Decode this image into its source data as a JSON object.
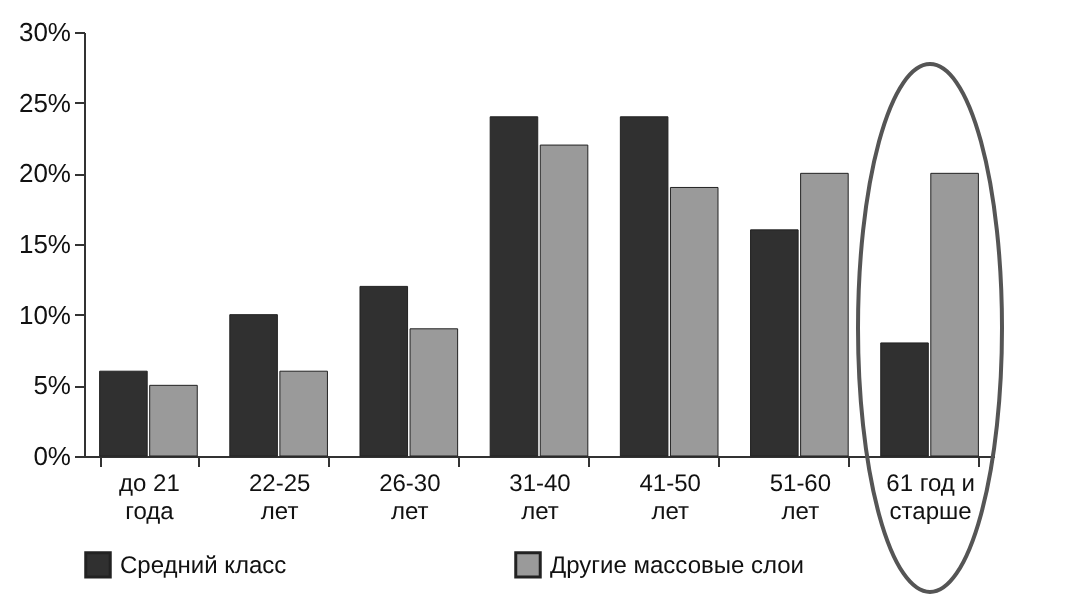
{
  "chart_data": {
    "type": "bar",
    "categories": [
      "до 21 года",
      "22-25 лет",
      "26-30 лет",
      "31-40 лет",
      "41-50 лет",
      "51-60 лет",
      "61 год и старше"
    ],
    "series": [
      {
        "name": "Средний класс",
        "color": "#303030",
        "values": [
          6,
          10,
          12,
          24,
          24,
          16,
          8
        ]
      },
      {
        "name": "Другие массовые слои",
        "color": "#9a9a9a",
        "values": [
          5,
          6,
          9,
          22,
          19,
          20,
          20
        ]
      }
    ],
    "ylim": [
      0,
      30
    ],
    "yticks": [
      {
        "value": 0,
        "label": "0%"
      },
      {
        "value": 5,
        "label": "5%"
      },
      {
        "value": 10,
        "label": "10%"
      },
      {
        "value": 15,
        "label": "15%"
      },
      {
        "value": 20,
        "label": "20%"
      },
      {
        "value": 25,
        "label": "25%"
      },
      {
        "value": 30,
        "label": "30%"
      }
    ],
    "grid": false,
    "legend": "bottom"
  }
}
